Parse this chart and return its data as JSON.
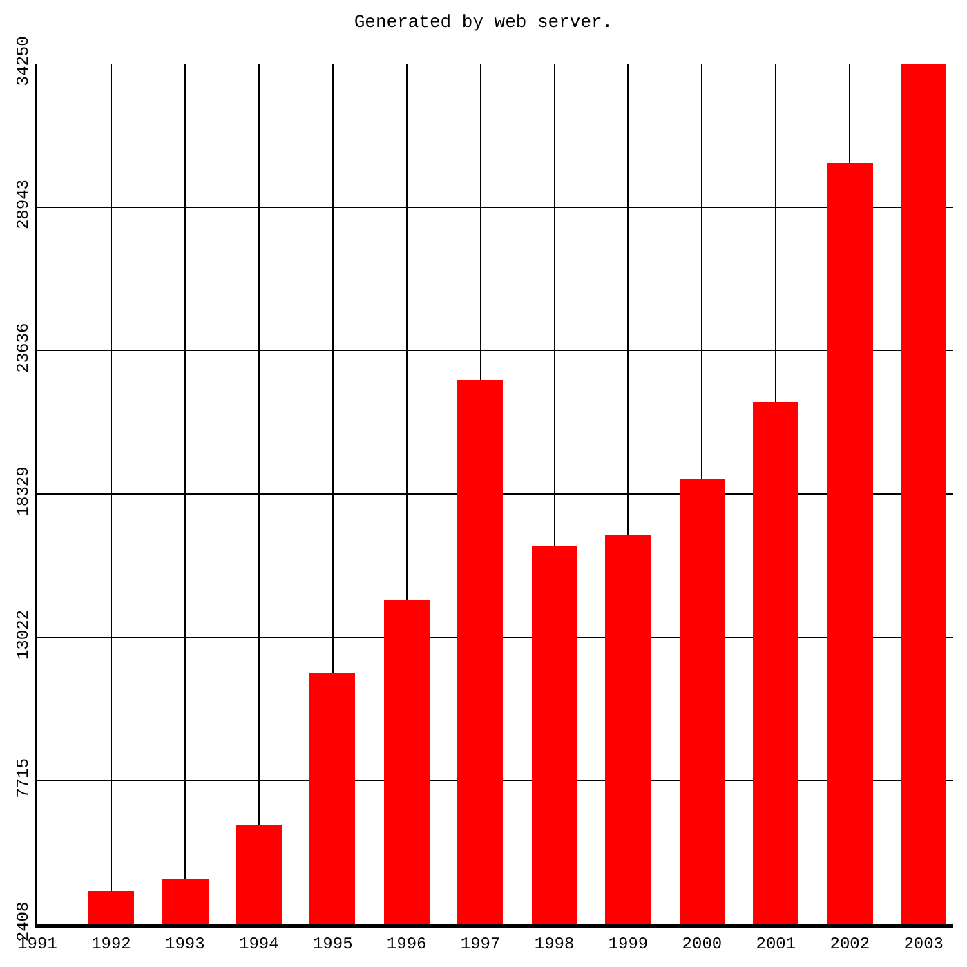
{
  "chart_data": {
    "type": "bar",
    "title": "Generated by web server.",
    "x": [
      1992,
      1993,
      1994,
      1995,
      1996,
      1997,
      1998,
      1999,
      2000,
      2001,
      2002,
      2003
    ],
    "values": [
      3660,
      4120,
      6070,
      11700,
      14410,
      22540,
      16420,
      16820,
      18880,
      21740,
      30570,
      34250
    ],
    "color": "#ff0000",
    "xlim": [
      1991,
      2003.4
    ],
    "xticks": [
      1991,
      1992,
      1993,
      1994,
      1995,
      1996,
      1997,
      1998,
      1999,
      2000,
      2001,
      2002,
      2003
    ],
    "ylim": [
      2408,
      34250
    ],
    "yticks": [
      2408,
      7715,
      13022,
      18329,
      23636,
      28943,
      34250
    ],
    "grid": true,
    "legend": false
  }
}
